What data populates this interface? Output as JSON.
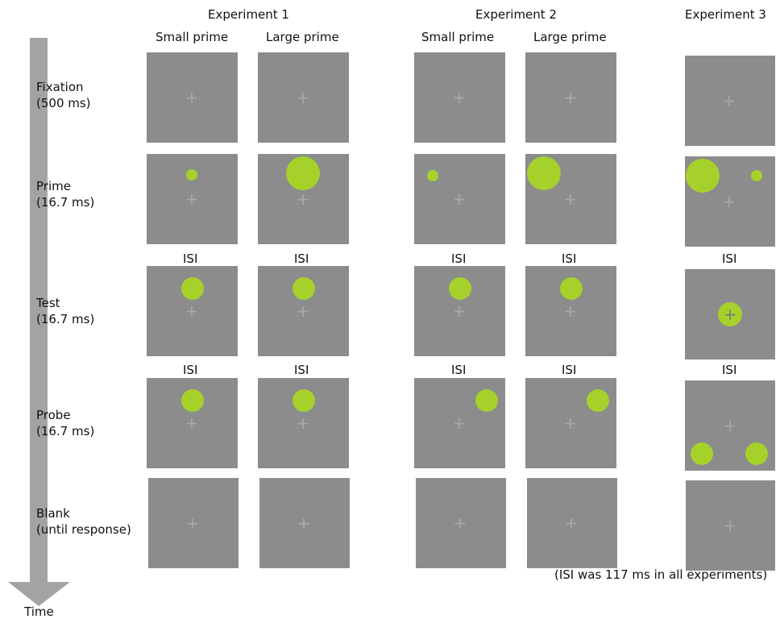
{
  "experiments": [
    {
      "label": "Experiment 1",
      "columns": [
        "Small prime",
        "Large prime"
      ]
    },
    {
      "label": "Experiment 2",
      "columns": [
        "Small prime",
        "Large prime"
      ]
    },
    {
      "label": "Experiment 3",
      "columns": []
    }
  ],
  "stages": [
    {
      "name": "Fixation",
      "duration": "(500 ms)"
    },
    {
      "name": "Prime",
      "duration": "(16.7 ms)"
    },
    {
      "name": "Test",
      "duration": "(16.7 ms)"
    },
    {
      "name": "Probe",
      "duration": "(16.7 ms)"
    },
    {
      "name": "Blank",
      "duration": "(until response)"
    }
  ],
  "isi_label": "ISI",
  "time_label": "Time",
  "note": "(ISI was 117 ms in all experiments)",
  "fixation_symbol": "+",
  "colors": {
    "panel": "#8c8c8c",
    "stimulus": "#a6d12a",
    "fixation": "#a9a9a9",
    "arrow": "#a3a3a3"
  }
}
